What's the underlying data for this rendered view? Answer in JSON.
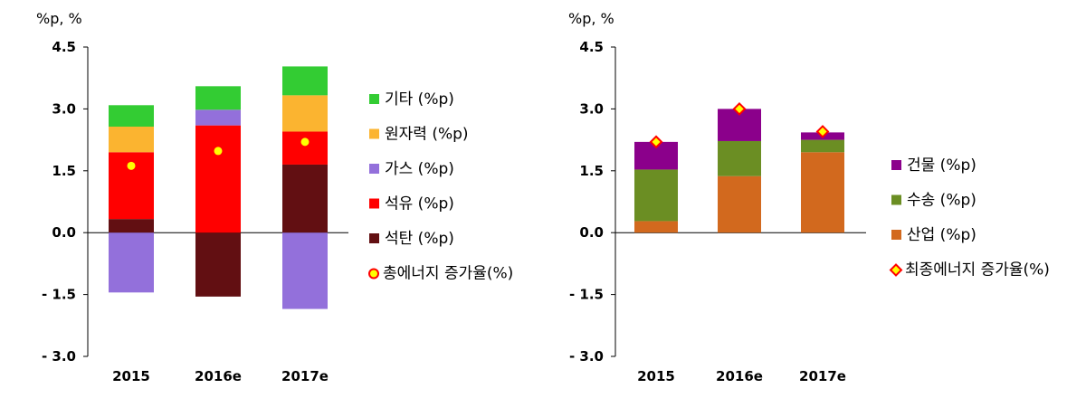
{
  "chart_data": [
    {
      "type": "bar",
      "stacked": true,
      "unit_label": "%p, %",
      "categories": [
        "2015",
        "2016e",
        "2017e"
      ],
      "ylim": [
        -3.0,
        4.5
      ],
      "yticks": [
        "4.5",
        "3.0",
        "1.5",
        "0.0",
        "- 1.5",
        "- 3.0"
      ],
      "ytick_values": [
        4.5,
        3.0,
        1.5,
        0.0,
        -1.5,
        -3.0
      ],
      "grid": false,
      "legend_position": "right",
      "series": [
        {
          "name": "석탄 (%p)",
          "color": "#620F12",
          "values": [
            0.33,
            -1.55,
            1.65
          ]
        },
        {
          "name": "석유 (%p)",
          "color": "#FF0000",
          "values": [
            1.62,
            2.6,
            0.8
          ]
        },
        {
          "name": "가스 (%p)",
          "color": "#9370DB",
          "values": [
            -1.45,
            0.38,
            -1.85
          ]
        },
        {
          "name": "원자력 (%p)",
          "color": "#FBB430",
          "values": [
            0.62,
            0,
            0.88
          ]
        },
        {
          "name": "기타 (%p)",
          "color": "#33CC33",
          "values": [
            0.52,
            0.57,
            0.7
          ]
        }
      ],
      "total_series": {
        "name": "총에너지 증가율(%)",
        "values": [
          1.62,
          1.98,
          2.2
        ],
        "marker": "circle",
        "fill": "#FFFF00",
        "stroke": "#FF0000"
      }
    },
    {
      "type": "bar",
      "stacked": true,
      "unit_label": "%p, %",
      "categories": [
        "2015",
        "2016e",
        "2017e"
      ],
      "ylim": [
        -3.0,
        4.5
      ],
      "yticks": [
        "4.5",
        "3.0",
        "1.5",
        "0.0",
        "- 1.5",
        "- 3.0"
      ],
      "ytick_values": [
        4.5,
        3.0,
        1.5,
        0.0,
        -1.5,
        -3.0
      ],
      "grid": false,
      "legend_position": "right",
      "series": [
        {
          "name": "산업 (%p)",
          "color": "#D2691E",
          "values": [
            0.28,
            1.37,
            1.95
          ]
        },
        {
          "name": "수송 (%p)",
          "color": "#6B8E23",
          "values": [
            1.25,
            0.85,
            0.3
          ]
        },
        {
          "name": "건물 (%p)",
          "color": "#8B008B",
          "values": [
            0.67,
            0.78,
            0.18
          ]
        }
      ],
      "total_series": {
        "name": "최종에너지 증가율(%)",
        "values": [
          2.2,
          3.0,
          2.45
        ],
        "marker": "diamond",
        "fill": "#FFFF00",
        "stroke": "#FF0000"
      }
    }
  ]
}
